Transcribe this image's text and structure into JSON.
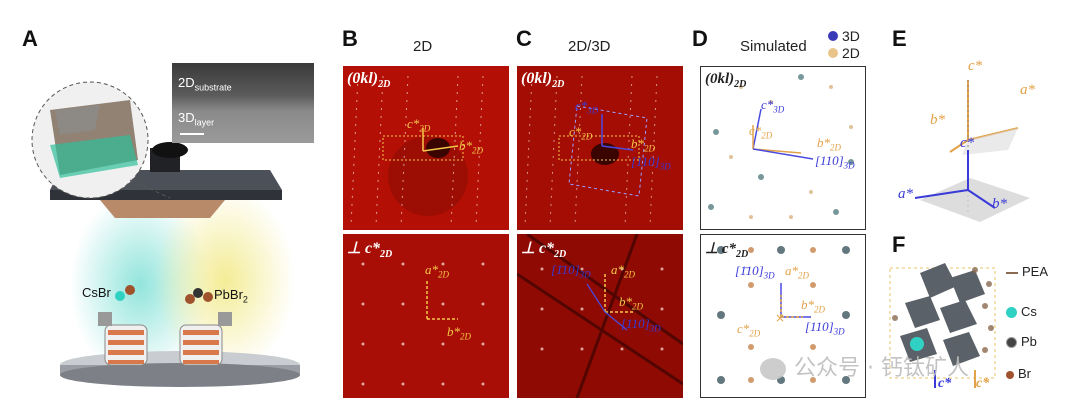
{
  "panels": {
    "A": {
      "label": "A",
      "tem_top": "2D",
      "tem_top_sub": "substrate",
      "tem_bottom": "3D",
      "tem_bottom_sub": "layer",
      "source_left": "CsBr",
      "source_right": "PbBr",
      "source_right_sub": "2"
    },
    "B": {
      "label": "B",
      "title": "2D",
      "top_label": "(0kl)",
      "top_label_sub": "2D",
      "vec_c": "c*",
      "vec_c_sub": "2D",
      "vec_b": "b*",
      "vec_b_sub": "2D",
      "bottom_label": "⊥ c*",
      "bottom_label_sub": "2D",
      "vec_a": "a*",
      "vec_a_sub": "2D",
      "vec_b2": "b*",
      "vec_b2_sub": "2D"
    },
    "C": {
      "label": "C",
      "title": "2D/3D",
      "top_label": "(0kl)",
      "top_label_sub": "2D",
      "vec_c3": "c*",
      "vec_c3_sub": "3D",
      "vec_c": "c*",
      "vec_c_sub": "2D",
      "vec_b": "b*",
      "vec_b_sub": "2D",
      "vec_110": "[110]",
      "vec_110_sub": "3D",
      "bottom_label": "⊥ c*",
      "bottom_label_sub": "2D",
      "vec_m110": "[1̄10]",
      "vec_m110_sub": "3D",
      "vec_a": "a*",
      "vec_a_sub": "2D",
      "vec_b2": "b*",
      "vec_b2_sub": "2D",
      "vec_110b": "[110]",
      "vec_110b_sub": "3D"
    },
    "D": {
      "label": "D",
      "title": "Simulated",
      "legend_3d": "3D",
      "legend_2d": "2D",
      "top_label": "(0kl)",
      "top_label_sub": "2D",
      "vec_c3": "c*",
      "vec_c3_sub": "3D",
      "vec_c": "c*",
      "vec_c_sub": "2D",
      "vec_b": "b*",
      "vec_b_sub": "2D",
      "vec_110": "[110]",
      "vec_110_sub": "3D",
      "bottom_label": "⊥ c*",
      "bottom_label_sub": "2D",
      "vec_m110": "[1̄10]",
      "vec_m110_sub": "3D",
      "vec_a": "a*",
      "vec_a_sub": "2D",
      "vec_b2": "b*",
      "vec_b2_sub": "2D",
      "vec_c2": "c*",
      "vec_c2_sub": "2D",
      "vec_110b": "[110]",
      "vec_110b_sub": "3D"
    },
    "E": {
      "label": "E",
      "c_top": "c*",
      "a_top": "a*",
      "b_top": "b*",
      "c_bot": "c*",
      "a_bot": "a*",
      "b_bot": "b*"
    },
    "F": {
      "label": "F",
      "legend": [
        "PEA",
        "Cs",
        "Pb",
        "Br"
      ],
      "axis_c_blue": "c*",
      "axis_c_orange": "c*"
    }
  },
  "watermark": "公众号 · 钙钛矿人",
  "colors": {
    "red_bg": "#b30f05",
    "yellow": "#f5c84a",
    "blue": "#3a3ad8",
    "orange": "#e2a24a"
  }
}
